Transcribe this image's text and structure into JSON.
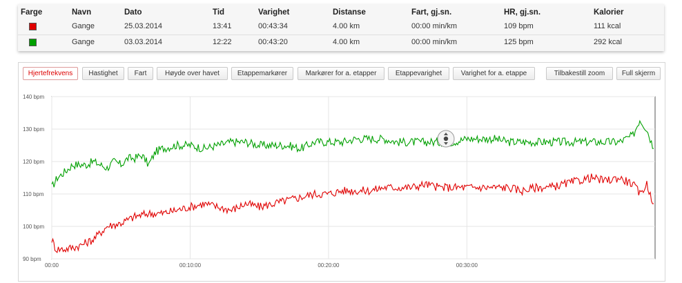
{
  "table": {
    "headers": [
      "Farge",
      "Navn",
      "Dato",
      "Tid",
      "Varighet",
      "Distanse",
      "Fart, gj.sn.",
      "HR, gj.sn.",
      "Kalorier"
    ],
    "rows": [
      {
        "color": "#e00000",
        "navn": "Gange",
        "dato": "25.03.2014",
        "tid": "13:41",
        "varighet": "00:43:34",
        "distanse": "4.00 km",
        "fart": "00:00 min/km",
        "hr": "109 bpm",
        "kalorier": "111 kcal"
      },
      {
        "color": "#00a000",
        "navn": "Gange",
        "dato": "03.03.2014",
        "tid": "12:22",
        "varighet": "00:43:20",
        "distanse": "4.00 km",
        "fart": "00:00 min/km",
        "hr": "125 bpm",
        "kalorier": "292 kcal"
      }
    ]
  },
  "tabs": {
    "hjertefrekvens": "Hjertefrekvens",
    "hastighet": "Hastighet",
    "fart": "Fart",
    "hoyde": "Høyde over havet",
    "etappemarkorer": "Etappemarkører",
    "markorer_etapper": "Markører for a. etapper",
    "etappevarighet": "Etappevarighet",
    "varighet_etappe": "Varighet for a. etappe",
    "tilbakestill_zoom": "Tilbakestill zoom",
    "full_skjerm": "Full skjerm"
  },
  "chart_data": {
    "type": "line",
    "y_ticks": [
      "90 bpm",
      "100 bpm",
      "110 bpm",
      "120 bpm",
      "130 bpm",
      "140 bpm"
    ],
    "x_ticks": [
      "00:00",
      "00:10:00",
      "00:20:00",
      "00:30:00"
    ],
    "ylim": [
      90,
      140
    ],
    "xlim_minutes": [
      0,
      43.6
    ],
    "grid": true,
    "series": [
      {
        "color": "#00a000",
        "points": [
          [
            0,
            112
          ],
          [
            0.4,
            115
          ],
          [
            1,
            117
          ],
          [
            1.5,
            119
          ],
          [
            2.5,
            119
          ],
          [
            3,
            120
          ],
          [
            4,
            118
          ],
          [
            4.5,
            120
          ],
          [
            5,
            119
          ],
          [
            5.5,
            121
          ],
          [
            6,
            121
          ],
          [
            6.5,
            122
          ],
          [
            7,
            119
          ],
          [
            7.5,
            123
          ],
          [
            8,
            124
          ],
          [
            9,
            125
          ],
          [
            10,
            125
          ],
          [
            11,
            124
          ],
          [
            12,
            125
          ],
          [
            13,
            126
          ],
          [
            14,
            126
          ],
          [
            15,
            125
          ],
          [
            16,
            125
          ],
          [
            17,
            125
          ],
          [
            18,
            124
          ],
          [
            19,
            126
          ],
          [
            20,
            126
          ],
          [
            21,
            126
          ],
          [
            22,
            127
          ],
          [
            23,
            127
          ],
          [
            24,
            127
          ],
          [
            25,
            126
          ],
          [
            26,
            126
          ],
          [
            27,
            126
          ],
          [
            28,
            126
          ],
          [
            29,
            126
          ],
          [
            30,
            127
          ],
          [
            31,
            127
          ],
          [
            32,
            127
          ],
          [
            33,
            126
          ],
          [
            34,
            126
          ],
          [
            35,
            126
          ],
          [
            36,
            126
          ],
          [
            37,
            126
          ],
          [
            38,
            126
          ],
          [
            39,
            126
          ],
          [
            40,
            126
          ],
          [
            41,
            126
          ],
          [
            42,
            128
          ],
          [
            42.5,
            133
          ],
          [
            43,
            130
          ],
          [
            43.5,
            124
          ]
        ]
      },
      {
        "color": "#e00000",
        "points": [
          [
            0,
            96
          ],
          [
            0.3,
            93
          ],
          [
            1,
            93
          ],
          [
            2,
            94
          ],
          [
            3,
            96
          ],
          [
            3.5,
            98
          ],
          [
            4,
            100
          ],
          [
            5,
            101
          ],
          [
            5.5,
            102
          ],
          [
            6,
            103
          ],
          [
            7,
            104
          ],
          [
            8,
            104
          ],
          [
            9,
            105
          ],
          [
            10,
            106
          ],
          [
            11,
            107
          ],
          [
            12,
            106
          ],
          [
            13,
            105
          ],
          [
            14,
            107
          ],
          [
            15,
            106
          ],
          [
            16,
            107
          ],
          [
            17,
            108
          ],
          [
            18,
            109
          ],
          [
            19,
            110
          ],
          [
            20,
            110
          ],
          [
            21,
            111
          ],
          [
            22,
            111
          ],
          [
            23,
            111
          ],
          [
            24,
            112
          ],
          [
            25,
            112
          ],
          [
            26,
            112
          ],
          [
            27,
            113
          ],
          [
            28,
            112
          ],
          [
            29,
            112
          ],
          [
            30,
            112
          ],
          [
            31,
            112
          ],
          [
            32,
            112
          ],
          [
            33,
            112
          ],
          [
            34,
            111
          ],
          [
            35,
            112
          ],
          [
            36,
            112
          ],
          [
            37,
            113
          ],
          [
            38,
            114
          ],
          [
            39,
            115
          ],
          [
            40,
            114
          ],
          [
            41,
            115
          ],
          [
            42,
            113
          ],
          [
            42.5,
            110
          ],
          [
            43,
            113
          ],
          [
            43.5,
            107
          ]
        ]
      }
    ]
  }
}
